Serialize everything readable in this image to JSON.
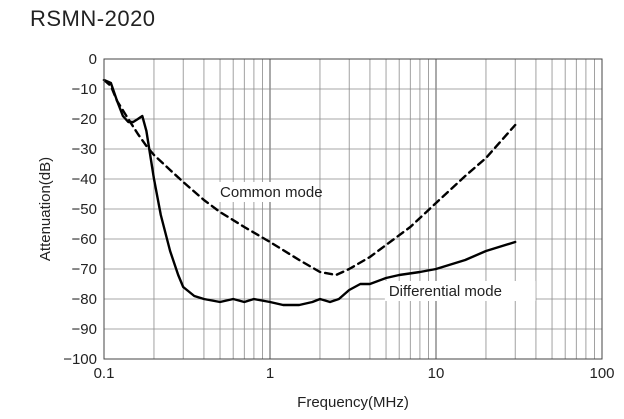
{
  "chart_data": {
    "type": "line",
    "title": "RSMN-2020",
    "xlabel": "Frequency(MHz)",
    "ylabel": "Attenuation(dB)",
    "x_scale": "log",
    "xlim": [
      0.1,
      100
    ],
    "ylim": [
      -100,
      0
    ],
    "x_ticks": [
      {
        "value": 0.1,
        "label": "0.1"
      },
      {
        "value": 1,
        "label": "1"
      },
      {
        "value": 10,
        "label": "10"
      },
      {
        "value": 100,
        "label": "100"
      }
    ],
    "y_ticks": [
      {
        "value": 0,
        "label": "0"
      },
      {
        "value": -10,
        "label": "−10"
      },
      {
        "value": -20,
        "label": "−20"
      },
      {
        "value": -30,
        "label": "−30"
      },
      {
        "value": -40,
        "label": "−40"
      },
      {
        "value": -50,
        "label": "−50"
      },
      {
        "value": -60,
        "label": "−60"
      },
      {
        "value": -70,
        "label": "−70"
      },
      {
        "value": -80,
        "label": "−80"
      },
      {
        "value": -90,
        "label": "−90"
      },
      {
        "value": -100,
        "label": "−100"
      }
    ],
    "grid": true,
    "legend": "none",
    "series": [
      {
        "name": "Common mode",
        "style": "dashed",
        "color": "#000000",
        "x": [
          0.1,
          0.11,
          0.12,
          0.14,
          0.16,
          0.18,
          0.2,
          0.25,
          0.3,
          0.4,
          0.5,
          0.7,
          1.0,
          1.5,
          2.0,
          2.5,
          3.0,
          4.0,
          5.0,
          7.0,
          10.0,
          15.0,
          20.0,
          30.0
        ],
        "values": [
          -7,
          -9,
          -14,
          -20,
          -25,
          -29,
          -32,
          -37,
          -41,
          -47,
          -51,
          -56,
          -61,
          -67,
          -71,
          -72,
          -70,
          -66,
          -62,
          -56,
          -48,
          -39,
          -33,
          -22
        ]
      },
      {
        "name": "Differential mode",
        "style": "solid",
        "color": "#000000",
        "x": [
          0.1,
          0.11,
          0.12,
          0.13,
          0.14,
          0.15,
          0.16,
          0.17,
          0.18,
          0.2,
          0.22,
          0.25,
          0.28,
          0.3,
          0.35,
          0.4,
          0.5,
          0.6,
          0.7,
          0.8,
          1.0,
          1.2,
          1.5,
          1.8,
          2.0,
          2.3,
          2.6,
          3.0,
          3.5,
          4.0,
          5.0,
          6.0,
          8.0,
          10.0,
          15.0,
          20.0,
          30.0
        ],
        "values": [
          -7,
          -8,
          -14,
          -19,
          -21,
          -21,
          -20,
          -19,
          -24,
          -40,
          -52,
          -64,
          -72,
          -76,
          -79,
          -80,
          -81,
          -80,
          -81,
          -80,
          -81,
          -82,
          -82,
          -81,
          -80,
          -81,
          -80,
          -77,
          -75,
          -75,
          -73,
          -72,
          -71,
          -70,
          -67,
          -64,
          -61
        ]
      }
    ],
    "annotations": [
      {
        "text": "Common mode",
        "x": 0.5,
        "y": -46,
        "series": 0
      },
      {
        "text": "Differential mode",
        "x": 5.2,
        "y": -79,
        "series": 1
      }
    ]
  }
}
